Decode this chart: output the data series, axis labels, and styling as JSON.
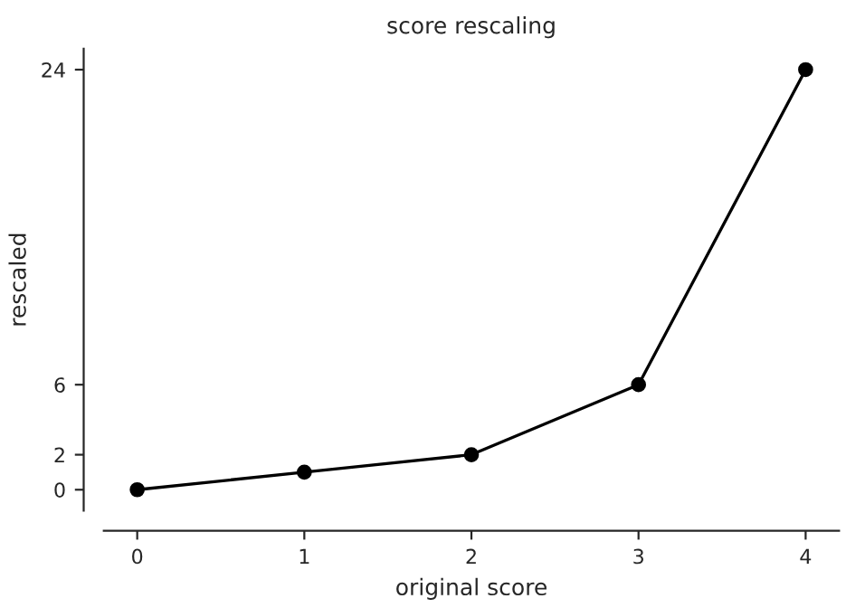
{
  "chart_data": {
    "type": "line",
    "title": "score rescaling",
    "xlabel": "original score",
    "ylabel": "rescaled",
    "x": [
      0,
      1,
      2,
      3,
      4
    ],
    "series": [
      {
        "color": "#000000",
        "values": [
          0,
          1,
          2,
          6,
          24
        ]
      }
    ],
    "xlim": [
      -0.2,
      4.2
    ],
    "ylim": [
      -1.2,
      25.2
    ],
    "xticks": [
      0,
      1,
      2,
      3,
      4
    ],
    "yticks": [
      0,
      2,
      6,
      24
    ],
    "marker": "circle",
    "line_style": "solid",
    "grid": false
  }
}
